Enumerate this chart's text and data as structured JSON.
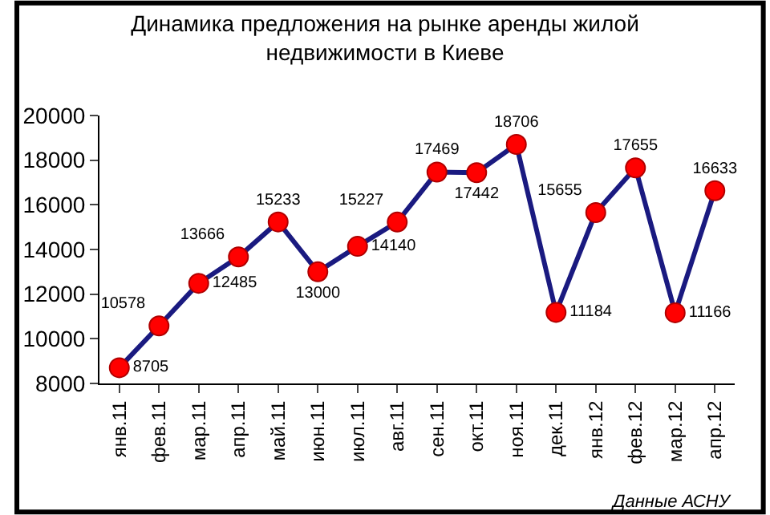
{
  "chart_data": {
    "type": "line",
    "title": "Динамика предложения на рынке аренды жилой недвижимости в Киеве",
    "categories": [
      "янв.11",
      "фев.11",
      "мар.11",
      "апр.11",
      "май.11",
      "июн.11",
      "июл.11",
      "авг.11",
      "сен.11",
      "окт.11",
      "ноя.11",
      "дек.11",
      "янв.12",
      "фев.12",
      "мар.12",
      "апр.12"
    ],
    "series": [
      {
        "color": "#1a1a80",
        "values": [
          8705,
          10578,
          12485,
          13666,
          15233,
          13000,
          14140,
          15227,
          17469,
          17442,
          18706,
          11184,
          15655,
          17655,
          11166,
          16633
        ]
      }
    ],
    "ylim": [
      8000,
      20000
    ],
    "yticks": [
      8000,
      10000,
      12000,
      14000,
      16000,
      18000,
      20000
    ],
    "grid": false,
    "marker": "circle",
    "line_style": "solid",
    "data_labels": true,
    "annotations": [
      "Данные АСНУ"
    ]
  }
}
